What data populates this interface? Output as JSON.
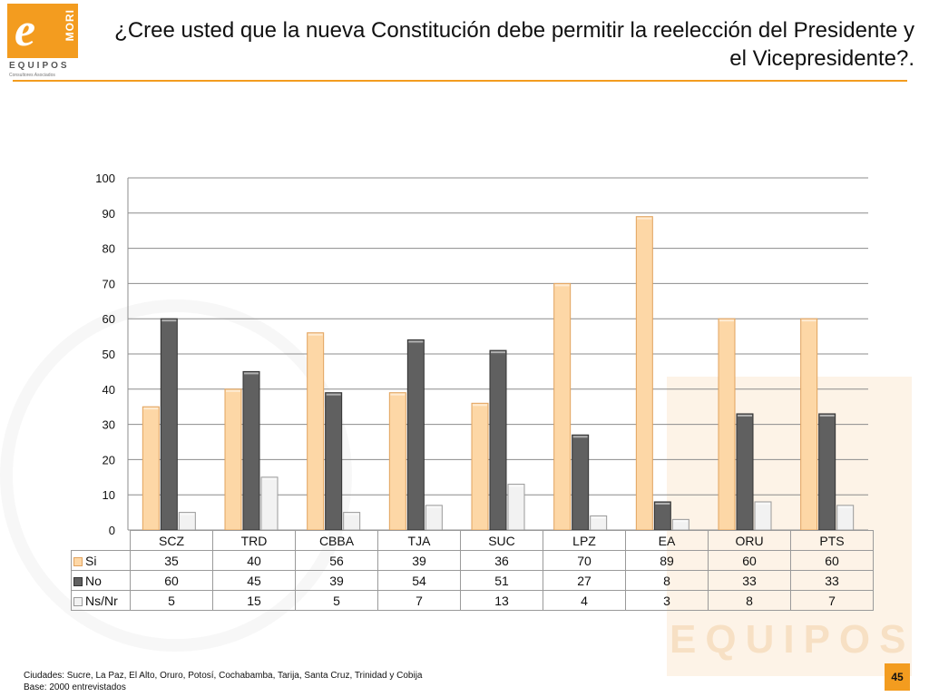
{
  "logo": {
    "wordmark": "EQUIPOS",
    "side_text": "MORI",
    "subtitle": "Consultores Asociados"
  },
  "title": "¿Cree usted que la nueva Constitución debe permitir la reelección del Presidente y el Vicepresidente?.",
  "chart_data": {
    "type": "bar",
    "categories": [
      "SCZ",
      "TRD",
      "CBBA",
      "TJA",
      "SUC",
      "LPZ",
      "EA",
      "ORU",
      "PTS"
    ],
    "series": [
      {
        "name": "Si",
        "values": [
          35,
          40,
          56,
          39,
          36,
          70,
          89,
          60,
          60
        ],
        "color": "#fdd7a6"
      },
      {
        "name": "No",
        "values": [
          60,
          45,
          39,
          54,
          51,
          27,
          8,
          33,
          33
        ],
        "color": "#606060"
      },
      {
        "name": "Ns/Nr",
        "values": [
          5,
          15,
          5,
          7,
          13,
          4,
          3,
          8,
          7
        ],
        "color": "#f2f2f2"
      }
    ],
    "ylim": [
      0,
      100
    ],
    "yticks": [
      0,
      10,
      20,
      30,
      40,
      50,
      60,
      70,
      80,
      90,
      100
    ],
    "grid": true,
    "legend": "data-table"
  },
  "footer": {
    "line1": "Ciudades: Sucre, La Paz, El Alto, Oruro, Potosí, Cochabamba, Tarija, Santa Cruz, Trinidad y Cobija",
    "line2": "Base: 2000 entrevistados"
  },
  "page_number": "45",
  "watermark": {
    "word": "EQUIPOS"
  }
}
